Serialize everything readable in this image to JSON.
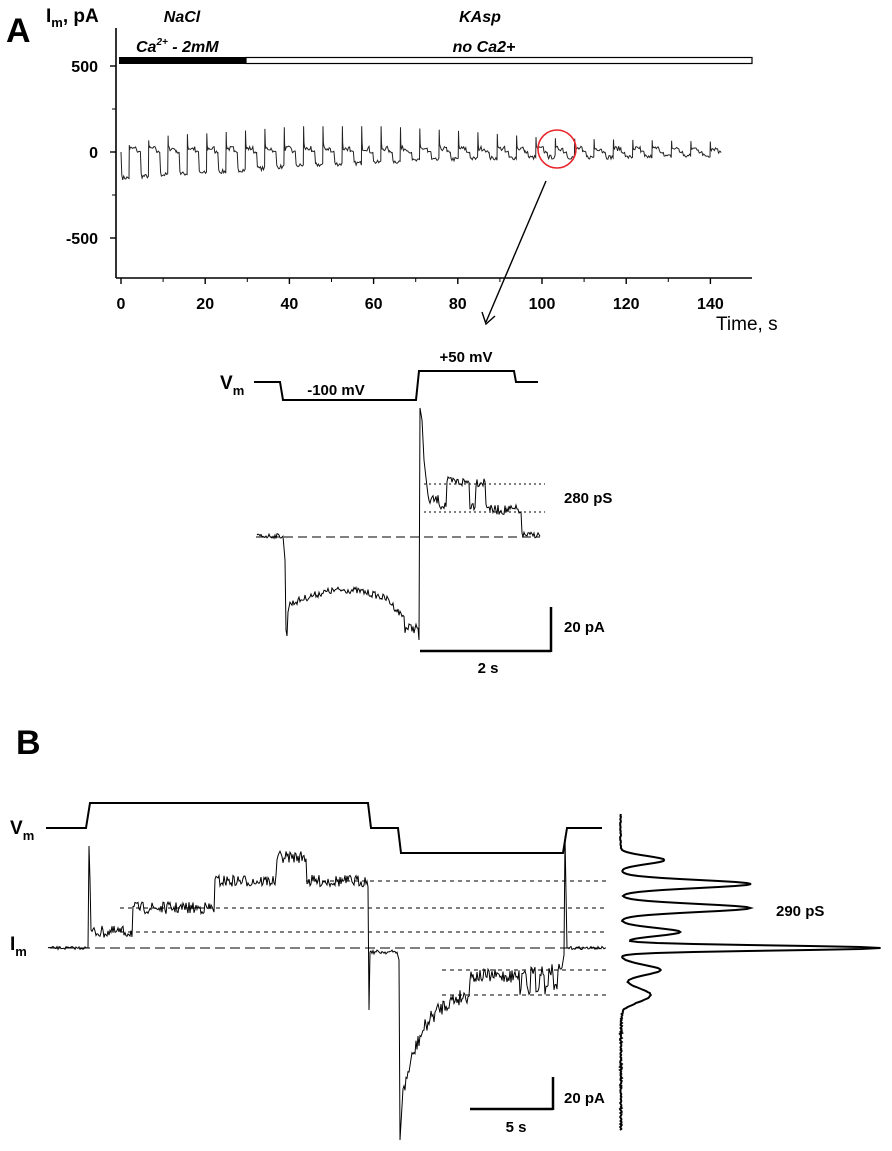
{
  "panel_a": {
    "letter": "A",
    "ylabel_main": "I",
    "ylabel_sub": "m",
    "ylabel_unit": ", pA",
    "xlabel": "Time, s",
    "solution_left_line1": "NaCl",
    "solution_left_line2_main": "Ca",
    "solution_left_line2_sup": "2+",
    "solution_left_line2_tail": " - 2mM",
    "solution_right_line1": "KAsp",
    "solution_right_line2": "no Ca2+",
    "vm_label_main": "V",
    "vm_label_sub": "m",
    "step_neg": "-100 mV",
    "step_pos": "+50 mV",
    "conductance": "280 pS",
    "scale_current": "20 pA",
    "scale_time": "2 s"
  },
  "panel_b": {
    "letter": "B",
    "vm_label_main": "V",
    "vm_label_sub": "m",
    "im_label_main": "I",
    "im_label_sub": "m",
    "conductance": "290 pS",
    "scale_current": "20 pA",
    "scale_time": "5 s"
  },
  "chart_data": [
    {
      "type": "line",
      "panel": "A (overview)",
      "xlabel": "Time, s",
      "ylabel": "Im, pA",
      "xlim": [
        0,
        150
      ],
      "ylim": [
        -700,
        700
      ],
      "xticks": [
        0,
        20,
        40,
        60,
        80,
        100,
        120,
        140
      ],
      "yticks": [
        500,
        0,
        -500
      ],
      "protocol": {
        "step_period_s": 4.6,
        "neg_step_mV": -100,
        "pos_step_mV": 50
      },
      "solutions": [
        {
          "label": "NaCl / Ca2+ - 2mM",
          "start_s": 0,
          "end_s": 29,
          "style": "filled"
        },
        {
          "label": "KAsp / no Ca2+",
          "start_s": 29,
          "end_s": 150,
          "style": "open"
        }
      ],
      "approx_current": {
        "x": [
          0,
          10,
          20,
          30,
          40,
          60,
          80,
          100,
          120,
          140
        ],
        "peak_positive_pA": [
          40,
          100,
          110,
          130,
          150,
          150,
          120,
          80,
          70,
          60
        ],
        "negative_step_pA": [
          -150,
          -130,
          -120,
          -100,
          -80,
          -60,
          -40,
          -30,
          -30,
          -20
        ]
      },
      "highlighted_step_s": 101
    },
    {
      "type": "line",
      "panel": "A (zoomed single sweep)",
      "voltage_steps_mV": [
        -100,
        50
      ],
      "scale_bars": {
        "current_pA": 20,
        "time_s": 2
      },
      "conductance_levels_pS": 280,
      "current_levels_pA": {
        "baseline": 0,
        "negative_step": -20,
        "positive_level_1": 5,
        "positive_level_2": 10
      }
    },
    {
      "type": "line",
      "panel": "B",
      "scale_bars": {
        "current_pA": 20,
        "time_s": 5
      },
      "conductance_levels_pS": 290,
      "positive_step_levels_pA": [
        0,
        5,
        10,
        15,
        20
      ],
      "negative_step_levels_pA": [
        0,
        -5,
        -10
      ],
      "all_points_histogram": true
    }
  ]
}
